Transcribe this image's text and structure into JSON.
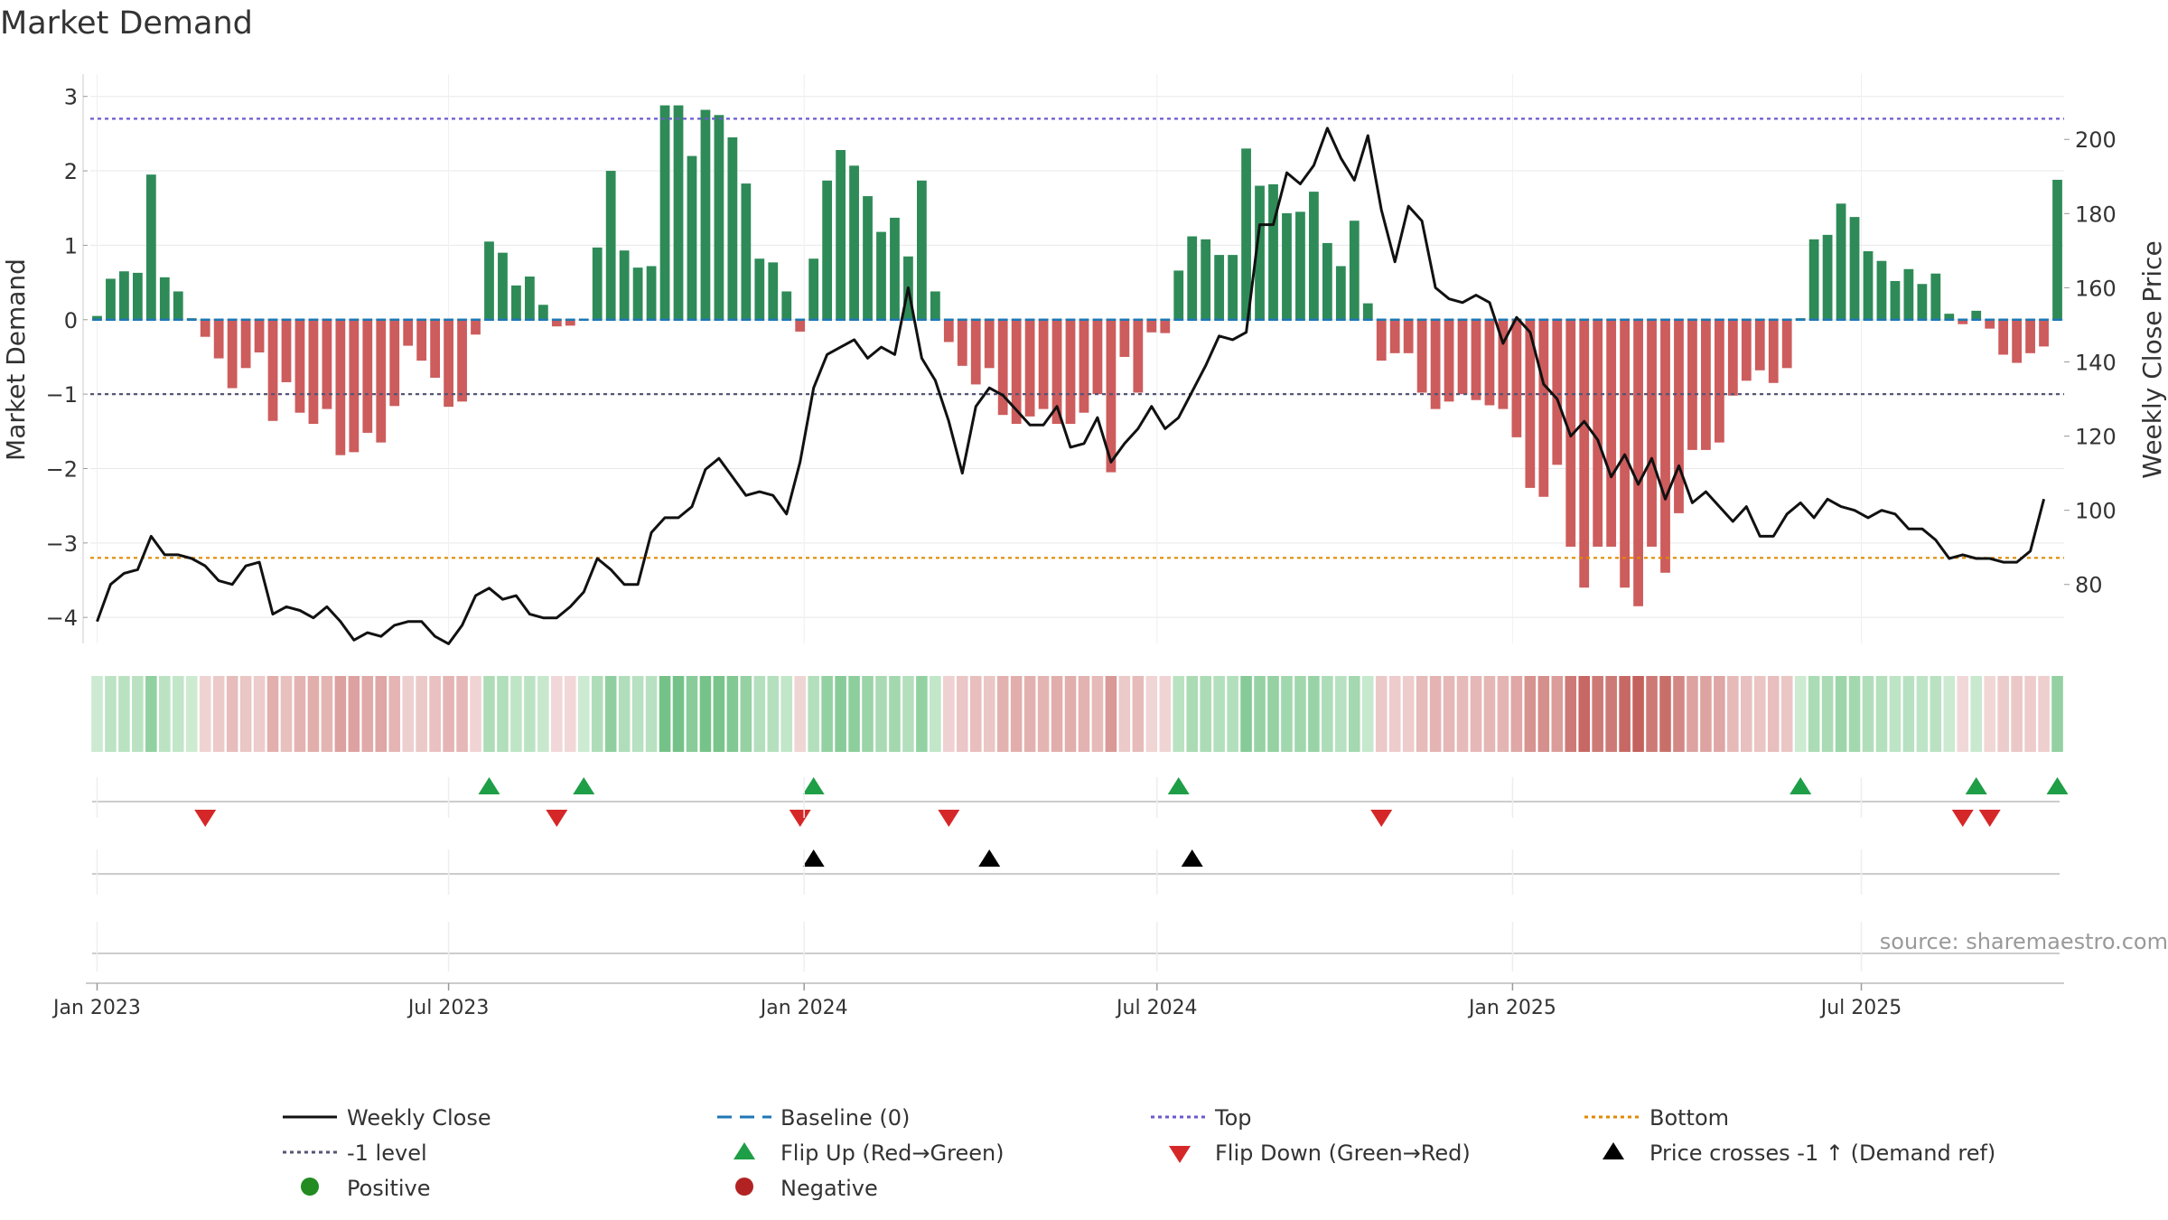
{
  "chart_data": {
    "type": "bar",
    "title": "Market Demand",
    "ylabel_left": "Market Demand",
    "ylabel_right": "Weekly Close Price",
    "ylim_left": [
      -4.35,
      3.3
    ],
    "ylim_right": [
      64.1,
      217.6
    ],
    "yticks_left": [
      3,
      2,
      1,
      0,
      -1,
      -2,
      -3,
      -4
    ],
    "yticks_right": [
      200,
      180,
      160,
      140,
      120,
      100,
      80
    ],
    "reference_lines": {
      "top": 2.7,
      "minus_one": -1,
      "bottom": -3.2
    },
    "x_ticks": [
      {
        "label": "Jan 2023",
        "week": 1
      },
      {
        "label": "Jul 2023",
        "week": 27
      },
      {
        "label": "Jan 2024",
        "week": 53.3
      },
      {
        "label": "Jul 2024",
        "week": 79.4
      },
      {
        "label": "Jan 2025",
        "week": 105.7
      },
      {
        "label": "Jul 2025",
        "week": 131.5
      }
    ],
    "demand": [
      0.05,
      0.55,
      0.65,
      0.63,
      1.95,
      0.57,
      0.38,
      0.02,
      -0.23,
      -0.52,
      -0.92,
      -0.65,
      -0.44,
      -1.36,
      -0.84,
      -1.25,
      -1.4,
      -1.2,
      -1.82,
      -1.78,
      -1.52,
      -1.65,
      -1.16,
      -0.35,
      -0.55,
      -0.78,
      -1.17,
      -1.1,
      -0.2,
      1.05,
      0.9,
      0.46,
      0.58,
      0.2,
      -0.09,
      -0.08,
      0.0,
      0.97,
      2.0,
      0.93,
      0.7,
      0.72,
      2.88,
      2.88,
      2.2,
      2.82,
      2.75,
      2.45,
      1.83,
      0.82,
      0.77,
      0.38,
      -0.16,
      0.82,
      1.87,
      2.28,
      2.07,
      1.66,
      1.18,
      1.37,
      0.85,
      1.87,
      0.38,
      -0.3,
      -0.62,
      -0.87,
      -0.65,
      -1.28,
      -1.4,
      -1.3,
      -1.2,
      -1.4,
      -1.4,
      -1.25,
      -1.0,
      -2.05,
      -0.5,
      -0.98,
      -0.17,
      -0.18,
      0.66,
      1.12,
      1.08,
      0.87,
      0.87,
      2.3,
      1.8,
      1.82,
      1.43,
      1.45,
      1.72,
      1.03,
      0.72,
      1.33,
      0.22,
      -0.55,
      -0.45,
      -0.45,
      -0.98,
      -1.2,
      -1.1,
      -1.0,
      -1.08,
      -1.15,
      -1.2,
      -1.58,
      -2.26,
      -2.38,
      -1.95,
      -3.05,
      -3.6,
      -3.05,
      -3.05,
      -3.6,
      -3.85,
      -3.05,
      -3.4,
      -2.6,
      -1.75,
      -1.75,
      -1.65,
      -1.02,
      -0.82,
      -0.68,
      -0.85,
      -0.65,
      0.02,
      1.08,
      1.14,
      1.56,
      1.38,
      0.92,
      0.79,
      0.52,
      0.68,
      0.48,
      0.62,
      0.08,
      -0.06,
      0.12,
      -0.12,
      -0.47,
      -0.58,
      -0.45,
      -0.36,
      1.88
    ],
    "weekly_close": [
      70,
      80,
      83,
      84,
      93,
      88,
      88,
      87,
      85,
      81,
      80,
      85,
      86,
      72,
      74,
      73,
      71,
      74,
      70,
      65,
      67,
      66,
      69,
      70,
      70,
      66,
      64,
      69,
      77,
      79,
      76,
      77,
      72,
      71,
      71,
      74,
      78,
      87,
      84,
      80,
      80,
      94,
      98,
      98,
      101,
      111,
      114,
      109,
      104,
      105,
      104,
      99,
      113,
      133,
      142,
      144,
      146,
      141,
      144,
      142,
      160,
      141,
      135,
      124,
      110,
      128,
      133,
      131,
      127,
      123,
      123,
      128,
      117,
      118,
      125,
      113,
      118,
      122,
      128,
      122,
      125,
      132,
      139,
      147,
      146,
      148,
      177,
      177,
      191,
      188,
      193,
      203,
      195,
      189,
      201,
      181,
      167,
      182,
      178,
      160,
      157,
      156,
      158,
      156,
      145,
      152,
      148,
      134,
      130,
      120,
      124,
      119,
      109,
      115,
      107,
      114,
      103,
      112,
      102,
      105,
      101,
      97,
      101,
      93,
      93,
      99,
      102,
      98,
      103,
      101,
      100,
      98,
      100,
      99,
      95,
      95,
      92,
      87,
      88,
      87,
      87,
      86,
      86,
      89,
      103
    ]
  },
  "legend": {
    "weekly_close": "Weekly Close",
    "baseline": "Baseline (0)",
    "top": "Top",
    "bottom": "Bottom",
    "minus_one": "-1 level",
    "flip_up": "Flip Up (Red→Green)",
    "flip_down": "Flip Down (Green→Red)",
    "price_cross": "Price crosses -1 ↑ (Demand ref)",
    "positive": "Positive",
    "negative": "Negative"
  },
  "source": "source: sharemaestro.com",
  "colors": {
    "positive_bar": "#2e8b57",
    "negative_bar": "#cd5c5c",
    "price_line": "#111111",
    "baseline": "#1f77b4",
    "top_line": "#6a5acd",
    "bottom_line": "#e08a00",
    "minus_one_line": "#555577",
    "flip_up": "#1e9e46",
    "flip_down": "#d62728",
    "positive_dot": "#228b22",
    "negative_dot": "#b22222",
    "cross_marker": "#000000"
  }
}
